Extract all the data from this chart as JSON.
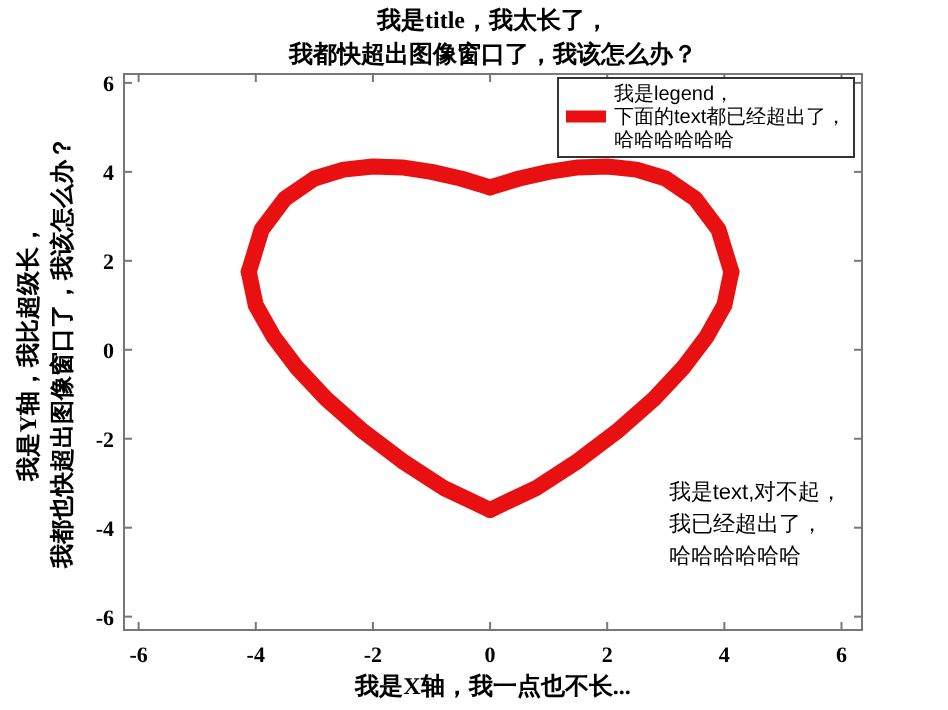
{
  "chart_data": {
    "type": "line",
    "title": "我是title，我太长了，我都快超出图像窗口了，我该怎么办？",
    "xlabel": "我是X轴，我一点也不长...",
    "ylabel": "我是Y轴，我比超级长，我都也快超出图像窗口了，我该怎么办？",
    "annotations": [
      "我是text,对不起，我已经超出了，哈哈哈哈哈哈"
    ],
    "xlim": [
      -6.25,
      6.35
    ],
    "ylim": [
      -6.3,
      6.2
    ],
    "xticks": [
      -6,
      -4,
      -2,
      0,
      2,
      4,
      6
    ],
    "yticks": [
      -6,
      -4,
      -2,
      0,
      2,
      4,
      6
    ],
    "legend": "top right",
    "series": [
      {
        "name": "我是legend，下面的text都已经超出了，哈哈哈哈哈哈",
        "color": "#e81010",
        "x": [
          0,
          0.5,
          1,
          1.5,
          2,
          2.5,
          3,
          3.5,
          3.9,
          4.12
        ],
        "values": [
          3.65,
          3.85,
          4.0,
          4.1,
          4.12,
          4.05,
          3.85,
          3.4,
          2.7,
          1.75
        ]
      },
      {
        "color": "#e81010",
        "x": [
          4.12,
          4,
          3.7,
          3.3,
          2.8,
          2.2,
          1.5,
          0.8,
          0
        ],
        "values": [
          1.75,
          1.0,
          0.3,
          -0.4,
          -1.1,
          -1.8,
          -2.5,
          -3.1,
          -3.6
        ]
      },
      {
        "color": "#e81010",
        "x": [
          0,
          -0.8,
          -1.5,
          -2.2,
          -2.8,
          -3.3,
          -3.7,
          -4,
          -4.12
        ],
        "values": [
          -3.6,
          -3.1,
          -2.5,
          -1.8,
          -1.1,
          -0.4,
          0.3,
          1.0,
          1.75
        ]
      },
      {
        "color": "#e81010",
        "x": [
          -4.12,
          -3.9,
          -3.5,
          -3,
          -2.5,
          -2,
          -1.5,
          -1,
          -0.5,
          0
        ],
        "values": [
          1.75,
          2.7,
          3.4,
          3.85,
          4.05,
          4.12,
          4.1,
          4.0,
          3.85,
          3.65
        ]
      }
    ]
  }
}
